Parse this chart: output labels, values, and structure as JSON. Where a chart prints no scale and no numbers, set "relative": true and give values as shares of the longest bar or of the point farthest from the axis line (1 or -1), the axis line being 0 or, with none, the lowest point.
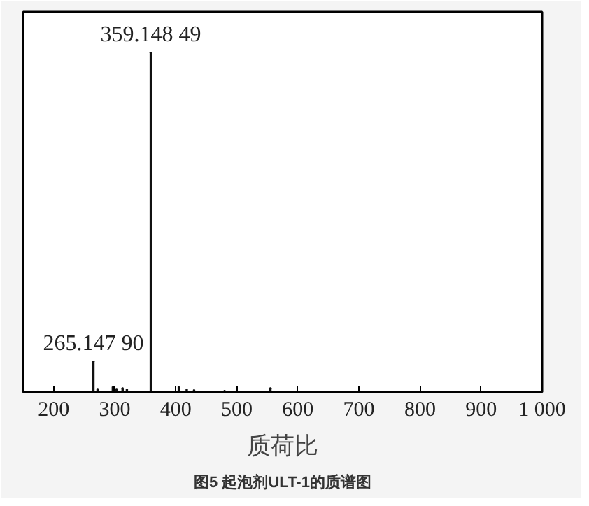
{
  "chart_data": {
    "type": "bar",
    "title": "图5 起泡剂ULT-1的质谱图",
    "xlabel": "质荷比",
    "relative": true,
    "x": [
      265.1479,
      272,
      297,
      303,
      313,
      320,
      359.14849,
      405,
      418,
      430,
      480,
      555
    ],
    "values": [
      0.09,
      0.01,
      0.015,
      0.01,
      0.012,
      0.008,
      1,
      0.015,
      0.008,
      0.006,
      0.004,
      0.012
    ],
    "color": "#111111",
    "xlim": [
      150,
      1000
    ],
    "xticks": [
      200,
      300,
      400,
      500,
      600,
      700,
      800,
      900,
      {
        "value": 1000,
        "label": "1 000"
      }
    ],
    "tick_labels": "x",
    "grid": false,
    "annotations": [
      {
        "text": "265.147 90",
        "x": 265.1479,
        "y": 0.09
      },
      {
        "text": "359.148 49",
        "x": 359.14849,
        "y": 1
      }
    ]
  }
}
